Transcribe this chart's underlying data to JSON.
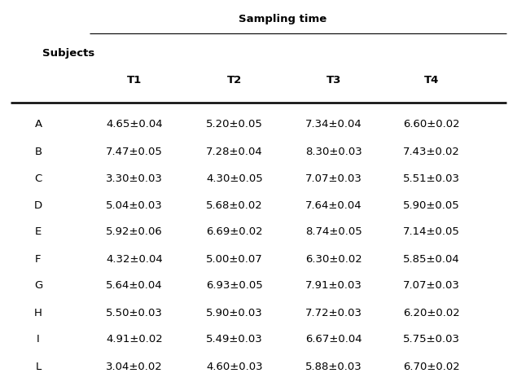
{
  "title": "Sampling time",
  "col_header": [
    "T1",
    "T2",
    "T3",
    "T4"
  ],
  "row_header": "Subjects",
  "subjects": [
    "A",
    "B",
    "C",
    "D",
    "E",
    "F",
    "G",
    "H",
    "I",
    "L"
  ],
  "data": [
    [
      "4.65±0.04",
      "5.20±0.05",
      "7.34±0.04",
      "6.60±0.02"
    ],
    [
      "7.47±0.05",
      "7.28±0.04",
      "8.30±0.03",
      "7.43±0.02"
    ],
    [
      "3.30±0.03",
      "4.30±0.05",
      "7.07±0.03",
      "5.51±0.03"
    ],
    [
      "5.04±0.03",
      "5.68±0.02",
      "7.64±0.04",
      "5.90±0.05"
    ],
    [
      "5.92±0.06",
      "6.69±0.02",
      "8.74±0.05",
      "7.14±0.05"
    ],
    [
      "4.32±0.04",
      "5.00±0.07",
      "6.30±0.02",
      "5.85±0.04"
    ],
    [
      "5.64±0.04",
      "6.93±0.05",
      "7.91±0.03",
      "7.07±0.03"
    ],
    [
      "5.50±0.03",
      "5.90±0.03",
      "7.72±0.03",
      "6.20±0.02"
    ],
    [
      "4.91±0.02",
      "5.49±0.03",
      "6.67±0.04",
      "5.75±0.03"
    ],
    [
      "3.04±0.02",
      "4.60±0.03",
      "5.88±0.03",
      "6.70±0.02"
    ]
  ],
  "bg_color": "#ffffff",
  "text_color": "#000000",
  "fontsize": 9.5
}
